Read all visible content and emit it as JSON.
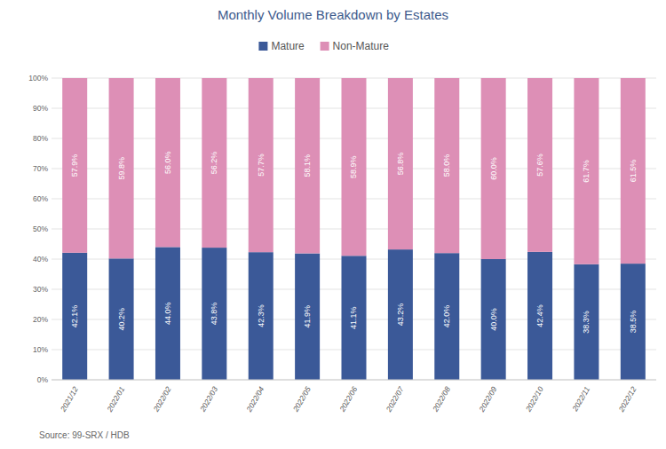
{
  "chart_data": {
    "type": "bar",
    "title": "Monthly Volume Breakdown by Estates",
    "source": "Source: 99-SRX / HDB",
    "categories": [
      "2021/12",
      "2022/01",
      "2022/02",
      "2022/03",
      "2022/04",
      "2022/05",
      "2022/06",
      "2022/07",
      "2022/08",
      "2022/09",
      "2022/10",
      "2022/11",
      "2022/12"
    ],
    "series": [
      {
        "name": "Mature",
        "color": "#3b5998",
        "values": [
          42.1,
          40.2,
          44.0,
          43.8,
          42.3,
          41.9,
          41.1,
          43.2,
          42.0,
          40.0,
          42.4,
          38.3,
          38.5
        ],
        "value_labels": [
          "42.1%",
          "40.2%",
          "44.0%",
          "43.8%",
          "42.3%",
          "41.9%",
          "41.1%",
          "43.2%",
          "42.0%",
          "40.0%",
          "42.4%",
          "38.3%",
          "38.5%"
        ]
      },
      {
        "name": "Non-Mature",
        "color": "#dd8fb6",
        "values": [
          57.9,
          59.8,
          56.0,
          56.2,
          57.7,
          58.1,
          58.9,
          56.8,
          58.0,
          60.0,
          57.6,
          61.7,
          61.5
        ],
        "value_labels": [
          "57.9%",
          "59.8%",
          "56.0%",
          "56.2%",
          "57.7%",
          "58.1%",
          "58.9%",
          "56.8%",
          "58.0%",
          "60.0%",
          "57.6%",
          "61.7%",
          "61.5%"
        ]
      }
    ],
    "ylim": [
      0,
      100
    ],
    "yticks": [
      {
        "value": 0,
        "label": "0%"
      },
      {
        "value": 10,
        "label": "10%"
      },
      {
        "value": 20,
        "label": "20%"
      },
      {
        "value": 30,
        "label": "30%"
      },
      {
        "value": 40,
        "label": "40%"
      },
      {
        "value": 50,
        "label": "50%"
      },
      {
        "value": 60,
        "label": "60%"
      },
      {
        "value": 70,
        "label": "70%"
      },
      {
        "value": 80,
        "label": "80%"
      },
      {
        "value": 90,
        "label": "90%"
      },
      {
        "value": 100,
        "label": "100%"
      }
    ],
    "stacked": true,
    "data_labels": true,
    "grid": true,
    "legend": "top"
  }
}
